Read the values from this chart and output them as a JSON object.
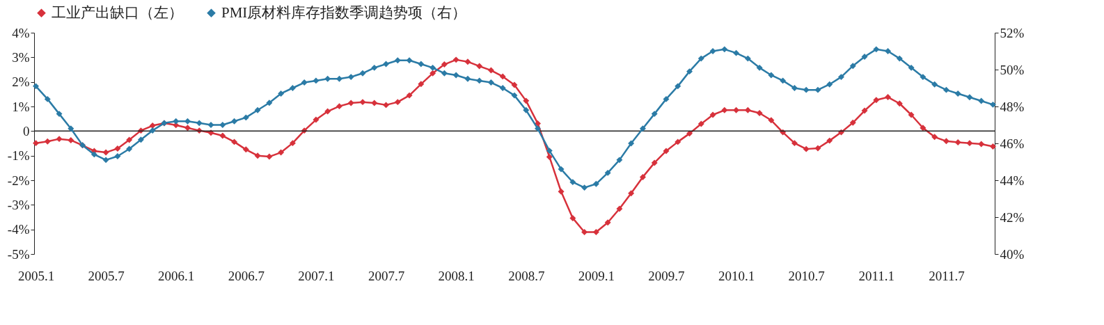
{
  "chart_data": {
    "type": "line",
    "categories": [
      "2005.1",
      null,
      null,
      null,
      null,
      null,
      "2005.7",
      null,
      null,
      null,
      null,
      null,
      "2006.1",
      null,
      null,
      null,
      null,
      null,
      "2006.7",
      null,
      null,
      null,
      null,
      null,
      "2007.1",
      null,
      null,
      null,
      null,
      null,
      "2007.7",
      null,
      null,
      null,
      null,
      null,
      "2008.1",
      null,
      null,
      null,
      null,
      null,
      "2008.7",
      null,
      null,
      null,
      null,
      null,
      "2009.1",
      null,
      null,
      null,
      null,
      null,
      "2009.7",
      null,
      null,
      null,
      null,
      null,
      "2010.1",
      null,
      null,
      null,
      null,
      null,
      "2010.7",
      null,
      null,
      null,
      null,
      null,
      "2011.1",
      null,
      null,
      null,
      null,
      null,
      "2011.7",
      null,
      null,
      null,
      null
    ],
    "series": [
      {
        "name": "工业产出缺口（左）",
        "color": "#d7313b",
        "values": [
          -0.49,
          -0.42,
          -0.32,
          -0.37,
          -0.58,
          -0.81,
          -0.87,
          -0.71,
          -0.36,
          0.02,
          0.22,
          0.32,
          0.24,
          0.13,
          0.02,
          -0.07,
          -0.19,
          -0.44,
          -0.75,
          -1.0,
          -1.04,
          -0.87,
          -0.49,
          0.02,
          0.46,
          0.8,
          1.01,
          1.14,
          1.18,
          1.14,
          1.06,
          1.18,
          1.45,
          1.91,
          2.35,
          2.71,
          2.9,
          2.82,
          2.64,
          2.47,
          2.22,
          1.88,
          1.23,
          0.31,
          -1.05,
          -2.46,
          -3.54,
          -4.11,
          -4.11,
          -3.72,
          -3.16,
          -2.53,
          -1.87,
          -1.29,
          -0.81,
          -0.44,
          -0.1,
          0.29,
          0.66,
          0.85,
          0.85,
          0.85,
          0.73,
          0.44,
          -0.05,
          -0.49,
          -0.73,
          -0.7,
          -0.39,
          -0.05,
          0.34,
          0.83,
          1.26,
          1.38,
          1.12,
          0.66,
          0.13,
          -0.24,
          -0.41,
          -0.46,
          -0.49,
          -0.53,
          -0.63
        ]
      },
      {
        "name": "PMI原材料库存指数季调趋势项（右）",
        "color": "#2b7ba6",
        "axis": "y2",
        "values": [
          49.1,
          48.4,
          47.6,
          46.8,
          45.9,
          45.4,
          45.1,
          45.3,
          45.7,
          46.2,
          46.7,
          47.1,
          47.2,
          47.2,
          47.1,
          47.0,
          47.0,
          47.2,
          47.4,
          47.8,
          48.2,
          48.7,
          49.0,
          49.3,
          49.4,
          49.5,
          49.5,
          49.6,
          49.8,
          50.1,
          50.3,
          50.5,
          50.5,
          50.3,
          50.1,
          49.8,
          49.7,
          49.5,
          49.4,
          49.3,
          49.0,
          48.6,
          47.8,
          46.8,
          45.6,
          44.6,
          43.9,
          43.6,
          43.8,
          44.4,
          45.1,
          46.0,
          46.8,
          47.6,
          48.4,
          49.1,
          49.9,
          50.6,
          51.0,
          51.1,
          50.9,
          50.6,
          50.1,
          49.7,
          49.4,
          49.0,
          48.9,
          48.9,
          49.2,
          49.6,
          50.2,
          50.7,
          51.1,
          51.0,
          50.6,
          50.1,
          49.6,
          49.2,
          48.9,
          48.7,
          48.5,
          48.3,
          48.1
        ]
      }
    ],
    "ylim": [
      -5,
      4
    ],
    "yticks": [
      {
        "value": -5,
        "label": "-5%"
      },
      {
        "value": -4,
        "label": "-4%"
      },
      {
        "value": -3,
        "label": "-3%"
      },
      {
        "value": -2,
        "label": "-2%"
      },
      {
        "value": -1,
        "label": "-1%"
      },
      0,
      {
        "value": 1,
        "label": "1%"
      },
      {
        "value": 2,
        "label": "2%"
      },
      {
        "value": 3,
        "label": "3%"
      },
      {
        "value": 4,
        "label": "4%"
      }
    ],
    "y2lim": [
      40,
      52
    ],
    "y2ticks": [
      {
        "value": 40,
        "label": "40%"
      },
      {
        "value": 42,
        "label": "42%"
      },
      {
        "value": 44,
        "label": "44%"
      },
      {
        "value": 46,
        "label": "46%"
      },
      {
        "value": 48,
        "label": "48%"
      },
      {
        "value": 50,
        "label": "50%"
      },
      {
        "value": 52,
        "label": "52%"
      }
    ],
    "ref_lines": [
      {
        "axis": "y",
        "value": 0,
        "color": "#222222"
      }
    ],
    "legend": "top",
    "marker": "diamond",
    "line_style": "solid"
  }
}
